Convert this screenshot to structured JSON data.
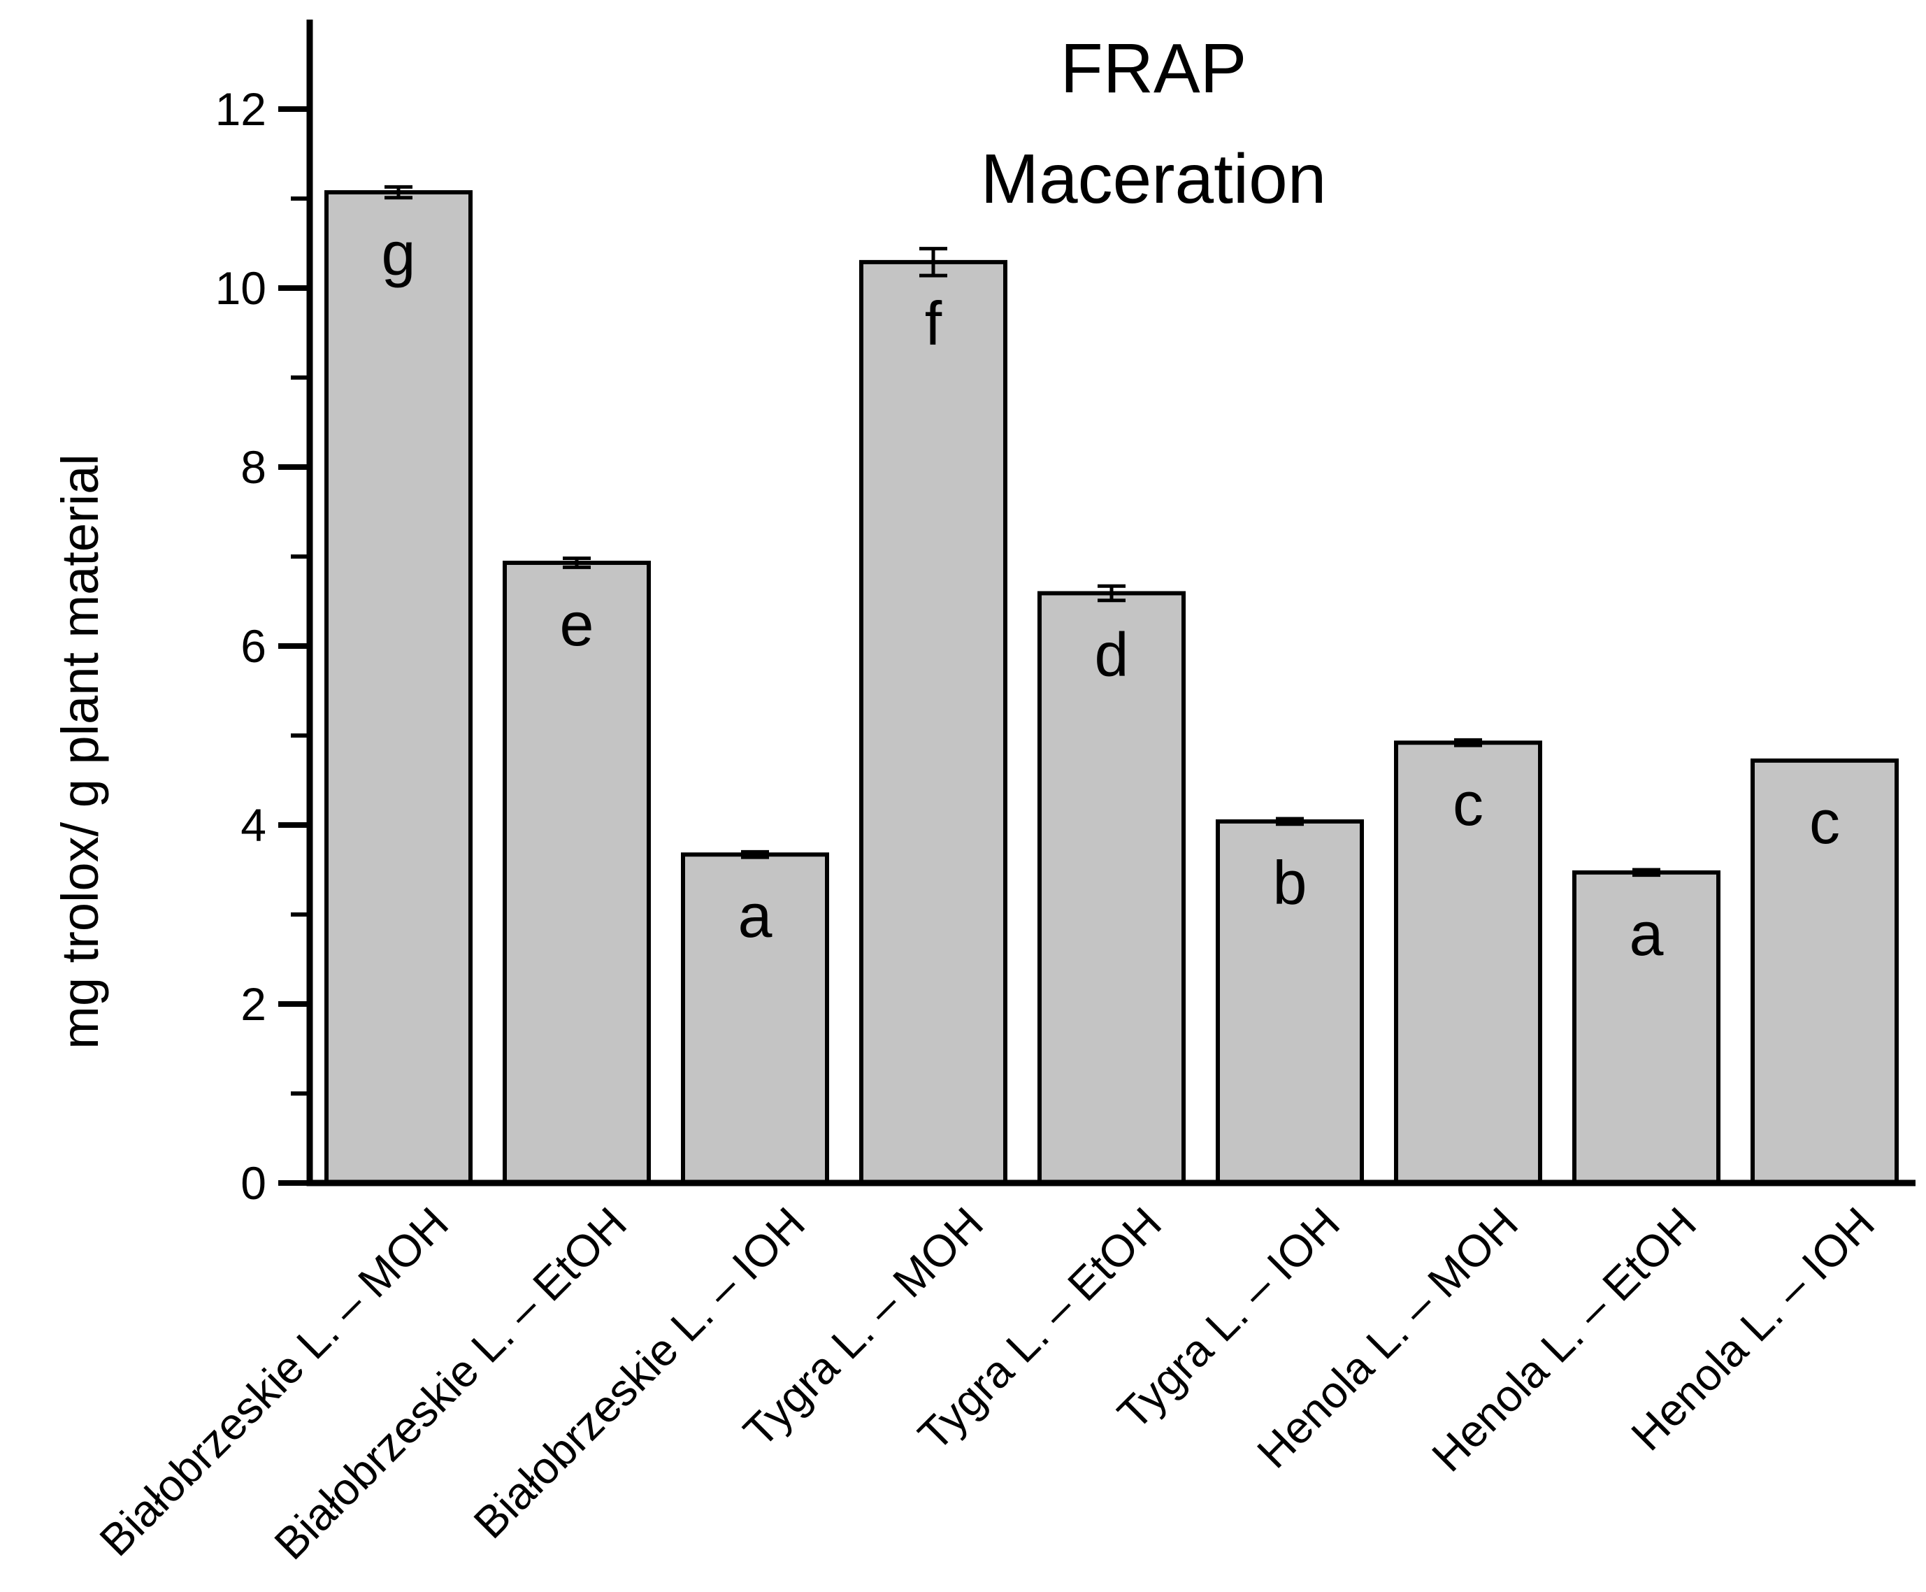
{
  "chart_data": {
    "type": "bar",
    "title_lines": [
      "FRAP",
      "Maceration"
    ],
    "title": "FRAP Maceration",
    "ylabel": "mg trolox/ g plant material",
    "xlabel": "",
    "ylim": [
      0,
      13
    ],
    "ytick_labels": [
      "0",
      "2",
      "4",
      "6",
      "8",
      "10",
      "12"
    ],
    "yticks_major": [
      0,
      2,
      4,
      6,
      8,
      10,
      12
    ],
    "yticks_minor": [
      1,
      3,
      5,
      7,
      9,
      11
    ],
    "grid": "off",
    "legend": "none",
    "categories": [
      "Białobrzeskie L. – MOH",
      "Białobrzeskie L. – EtOH",
      "Białobrzeskie L. – IOH",
      "Tygra L. – MOH",
      "Tygra L. – EtOH",
      "Tygra L. – IOH",
      "Henola L. – MOH",
      "Henola L. – EtOH",
      "Henola L. – IOH"
    ],
    "values": [
      11.07,
      6.93,
      3.67,
      10.29,
      6.59,
      4.04,
      4.92,
      3.47,
      4.72
    ],
    "errors": [
      0.06,
      0.05,
      0.03,
      0.15,
      0.08,
      0.03,
      0.03,
      0.03,
      0
    ],
    "sig_letters": [
      "g",
      "e",
      "a",
      "f",
      "d",
      "b",
      "c",
      "a",
      "c"
    ],
    "bar_fill_color": "#c4c4c4",
    "bar_stroke_color": "#000000",
    "axis_color": "#000000",
    "background_color": "#ffffff"
  }
}
